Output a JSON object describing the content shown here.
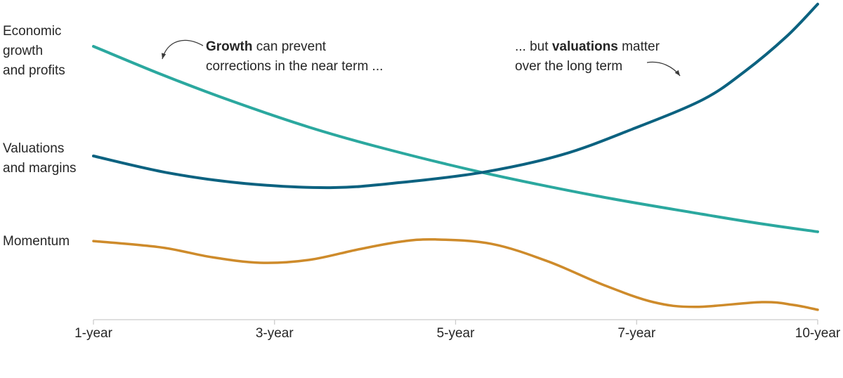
{
  "page": {
    "background": "#ffffff",
    "text_color": "#262626",
    "axis_color": "#cccccc"
  },
  "chart_data": {
    "type": "line",
    "title": "",
    "xlabel": "",
    "ylabel": "",
    "x_ticks": [
      "1-year",
      "3-year",
      "5-year",
      "7-year",
      "10-year"
    ],
    "y_axis": "none (conceptual illustration; values are relative levels 0-100, 100 = top of plot)",
    "grid": false,
    "legend_position": "left-of-curve-start",
    "series": [
      {
        "name": "Economic growth and profits",
        "label_lines": "Economic\ngrowth\nand profits",
        "color": "#2BA89F",
        "stroke_width": 4,
        "points": [
          [
            0.0,
            85.5
          ],
          [
            0.094,
            76.7
          ],
          [
            0.191,
            68.4
          ],
          [
            0.298,
            60.2
          ],
          [
            0.404,
            53.4
          ],
          [
            0.54,
            45.9
          ],
          [
            0.695,
            38.7
          ],
          [
            0.841,
            33.0
          ],
          [
            0.919,
            30.1
          ],
          [
            1.0,
            27.5
          ]
        ]
      },
      {
        "name": "Valuations and margins",
        "label_lines": "Valuations\nand margins",
        "color": "#0C6280",
        "stroke_width": 4,
        "points": [
          [
            0.0,
            51.2
          ],
          [
            0.104,
            45.9
          ],
          [
            0.21,
            42.6
          ],
          [
            0.327,
            41.3
          ],
          [
            0.424,
            42.9
          ],
          [
            0.54,
            46.2
          ],
          [
            0.647,
            51.6
          ],
          [
            0.744,
            59.6
          ],
          [
            0.841,
            68.8
          ],
          [
            0.899,
            77.6
          ],
          [
            0.957,
            88.6
          ],
          [
            1.0,
            98.7
          ]
        ]
      },
      {
        "name": "Momentum",
        "label_lines": "Momentum",
        "color": "#CE8B2B",
        "stroke_width": 3.5,
        "points": [
          [
            0.0,
            24.6
          ],
          [
            0.094,
            22.6
          ],
          [
            0.162,
            19.6
          ],
          [
            0.23,
            17.8
          ],
          [
            0.298,
            18.7
          ],
          [
            0.366,
            22.0
          ],
          [
            0.424,
            24.4
          ],
          [
            0.472,
            25.1
          ],
          [
            0.55,
            23.7
          ],
          [
            0.628,
            18.2
          ],
          [
            0.705,
            10.8
          ],
          [
            0.773,
            5.5
          ],
          [
            0.831,
            4.0
          ],
          [
            0.923,
            5.5
          ],
          [
            0.967,
            4.6
          ],
          [
            1.0,
            3.1
          ]
        ]
      }
    ],
    "annotations": [
      {
        "pre": "",
        "bold": "Growth",
        "post": " can prevent",
        "line2": "corrections in the near term ...",
        "arrow": {
          "curve": [
            [
              289,
              65
            ],
            [
              262,
              50
            ],
            [
              238,
              58
            ],
            [
              231,
              84
            ]
          ],
          "color": "#3a3a3a"
        }
      },
      {
        "pre": "... but ",
        "bold": "valuations",
        "post": " matter",
        "line2": "over the long term",
        "arrow": {
          "curve": [
            [
              921,
              89
            ],
            [
              941,
              86
            ],
            [
              958,
              95
            ],
            [
              968,
              108
            ]
          ],
          "color": "#3a3a3a"
        }
      }
    ]
  }
}
